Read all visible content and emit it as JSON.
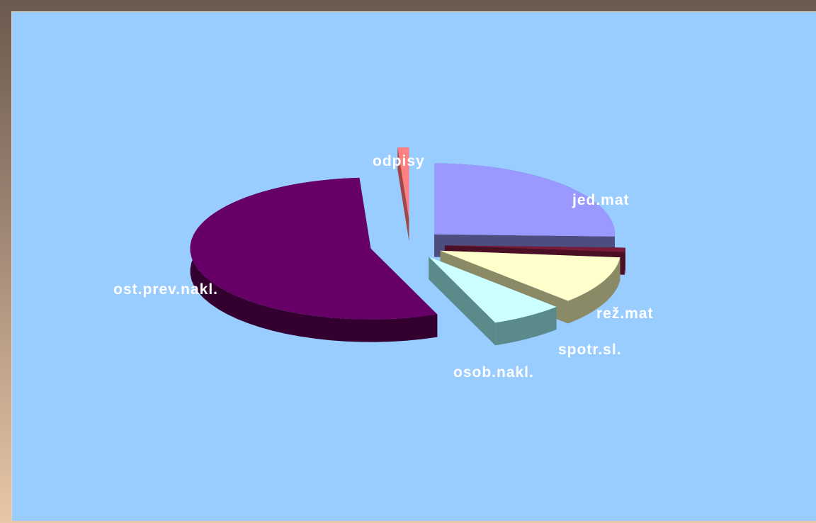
{
  "chart_data": {
    "type": "pie",
    "style": "3d-exploded",
    "categories": [
      "jed.mat",
      "rež.mat",
      "spotr.sl.",
      "osob.nakl.",
      "ost.prev.nakl.",
      "odpisy"
    ],
    "values": [
      25.5,
      1.0,
      11.0,
      6.5,
      55.0,
      1.0
    ],
    "colors": [
      "#9999ff",
      "#7a1a3a",
      "#ffffcc",
      "#ccffff",
      "#660066",
      "#ff8080"
    ],
    "side_colors": [
      "#4d4d80",
      "#4a0f24",
      "#8a8a66",
      "#5a8a8a",
      "#33002f",
      "#a04848"
    ],
    "legend": "none",
    "background": "#99ccff"
  }
}
